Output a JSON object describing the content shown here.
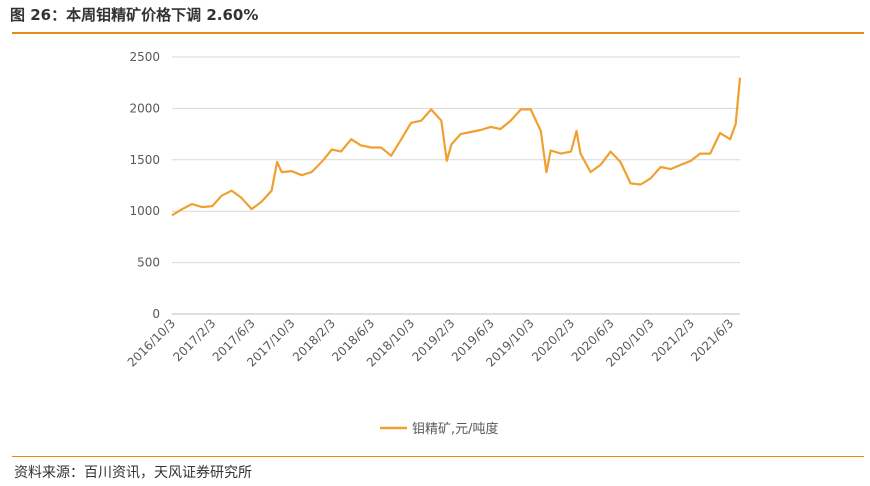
{
  "header": {
    "title": "图 26：本周钼精矿价格下调 2.60%"
  },
  "footer": {
    "source": "资料来源：百川资讯，天风证券研究所"
  },
  "colors": {
    "accent": "#e88a1a",
    "line": "#f0a030",
    "grid": "#d9d9d9"
  },
  "chart_data": {
    "type": "line",
    "title": "",
    "xlabel": "",
    "ylabel": "",
    "ylim": [
      0,
      2500
    ],
    "yticks": [
      0,
      500,
      1000,
      1500,
      2000,
      2500
    ],
    "xticks": [
      "2016/10/3",
      "2017/2/3",
      "2017/6/3",
      "2017/10/3",
      "2018/2/3",
      "2018/6/3",
      "2018/10/3",
      "2019/2/3",
      "2019/6/3",
      "2019/10/3",
      "2020/2/3",
      "2020/6/3",
      "2020/10/3",
      "2021/2/3",
      "2021/6/3"
    ],
    "grid": "horizontal",
    "legend_position": "bottom",
    "series": [
      {
        "name": "钼精矿,元/吨度",
        "x": [
          "2016/10/3",
          "2016/11/3",
          "2016/12/3",
          "2017/1/3",
          "2017/2/3",
          "2017/3/3",
          "2017/4/3",
          "2017/5/3",
          "2017/6/3",
          "2017/7/3",
          "2017/8/3",
          "2017/8/20",
          "2017/9/3",
          "2017/10/3",
          "2017/11/3",
          "2017/12/3",
          "2018/1/3",
          "2018/2/3",
          "2018/3/3",
          "2018/4/3",
          "2018/5/3",
          "2018/6/3",
          "2018/7/3",
          "2018/8/3",
          "2018/9/3",
          "2018/10/3",
          "2018/11/3",
          "2018/12/3",
          "2019/1/3",
          "2019/1/20",
          "2019/2/3",
          "2019/3/3",
          "2019/4/3",
          "2019/5/3",
          "2019/6/3",
          "2019/7/3",
          "2019/8/3",
          "2019/9/3",
          "2019/10/3",
          "2019/11/3",
          "2019/11/20",
          "2019/12/3",
          "2020/1/3",
          "2020/2/3",
          "2020/2/20",
          "2020/3/3",
          "2020/4/3",
          "2020/5/3",
          "2020/6/3",
          "2020/7/3",
          "2020/8/3",
          "2020/9/3",
          "2020/10/3",
          "2020/11/3",
          "2020/12/3",
          "2021/1/3",
          "2021/2/3",
          "2021/3/3",
          "2021/4/3",
          "2021/5/3",
          "2021/6/3",
          "2021/6/20",
          "2021/7/3"
        ],
        "values": [
          960,
          1020,
          1070,
          1040,
          1050,
          1150,
          1200,
          1130,
          1020,
          1090,
          1200,
          1480,
          1380,
          1390,
          1350,
          1380,
          1480,
          1600,
          1580,
          1700,
          1640,
          1620,
          1620,
          1540,
          1700,
          1860,
          1880,
          1990,
          1880,
          1490,
          1650,
          1750,
          1770,
          1790,
          1820,
          1800,
          1880,
          1990,
          1990,
          1780,
          1380,
          1590,
          1560,
          1580,
          1780,
          1560,
          1380,
          1450,
          1580,
          1480,
          1270,
          1260,
          1320,
          1430,
          1410,
          1450,
          1490,
          1560,
          1560,
          1760,
          1700,
          1850,
          2300
        ]
      }
    ]
  }
}
